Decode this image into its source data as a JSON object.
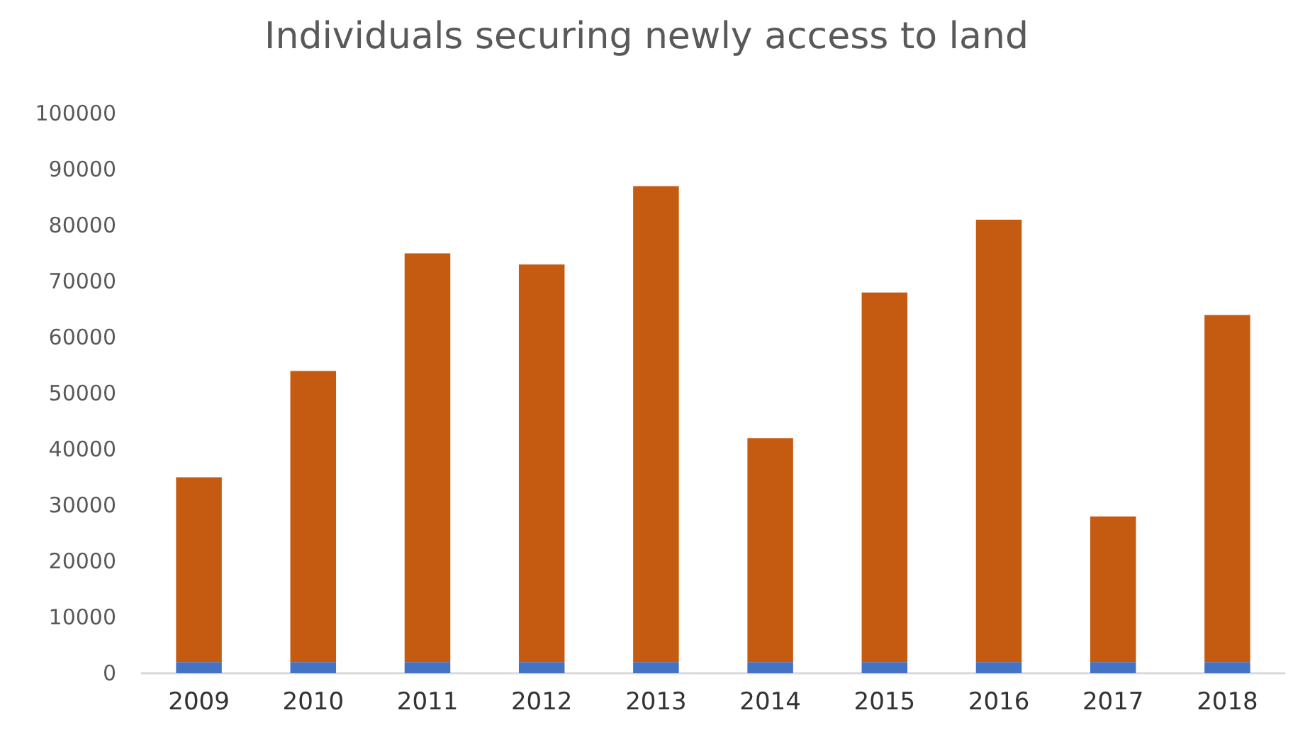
{
  "chart_data": {
    "type": "bar",
    "title": "Individuals securing newly access to land",
    "categories": [
      "2009",
      "2010",
      "2011",
      "2012",
      "2013",
      "2014",
      "2015",
      "2016",
      "2017",
      "2018"
    ],
    "stacked": true,
    "series": [
      {
        "color": "#4472c4",
        "values": [
          2000,
          2000,
          2000,
          2000,
          2000,
          2000,
          2000,
          2000,
          2000,
          2000
        ]
      },
      {
        "color": "#c55a11",
        "values": [
          33000,
          52000,
          73000,
          71000,
          85000,
          40000,
          66000,
          79000,
          26000,
          62000
        ]
      }
    ],
    "ylim": [
      0,
      100000
    ],
    "yticks": [
      0,
      10000,
      20000,
      30000,
      40000,
      50000,
      60000,
      70000,
      80000,
      90000,
      100000
    ],
    "grid": false
  }
}
